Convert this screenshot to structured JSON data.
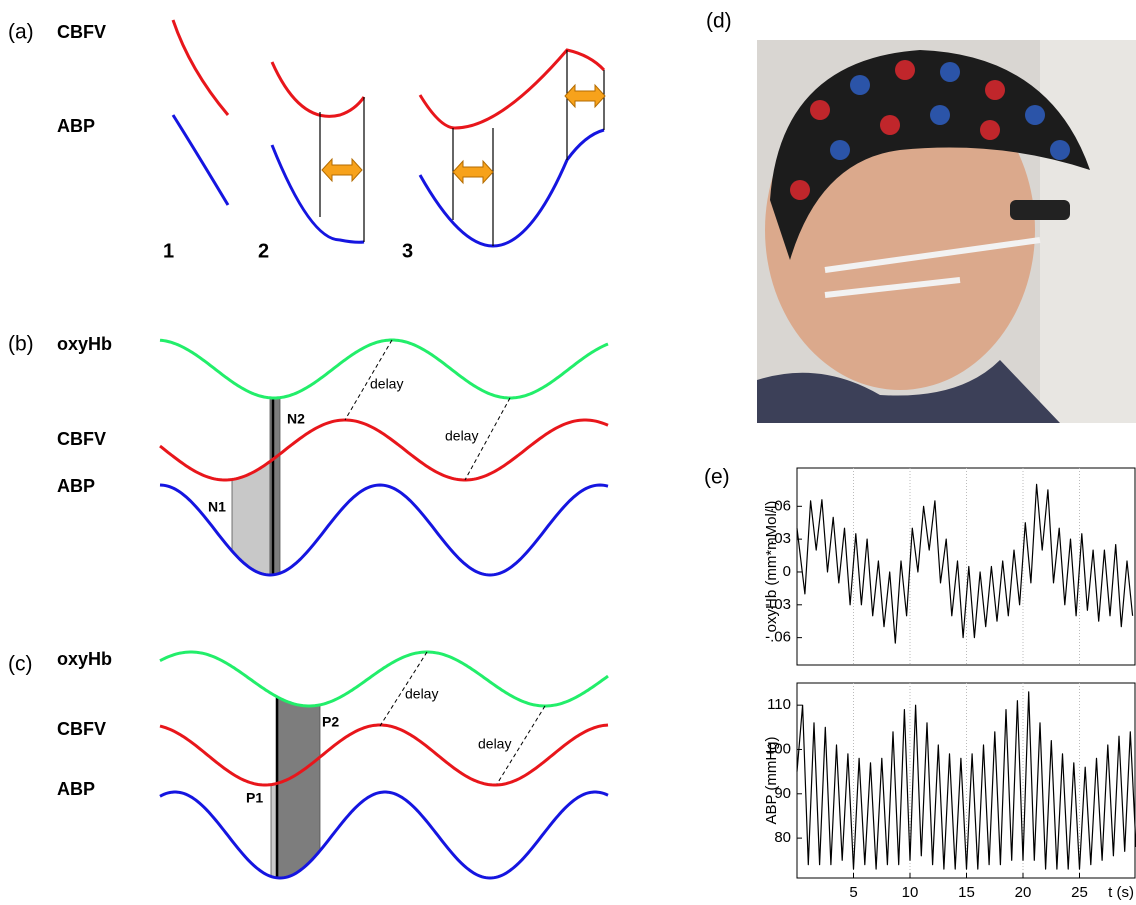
{
  "panels": {
    "a": {
      "label": "(a)",
      "signals": [
        "CBFV",
        "ABP"
      ],
      "stages": [
        "1",
        "2",
        "3"
      ]
    },
    "b": {
      "label": "(b)",
      "signals": [
        "oxyHb",
        "CBFV",
        "ABP"
      ],
      "delays": [
        "delay",
        "delay"
      ],
      "areas": [
        "N1",
        "N2"
      ]
    },
    "c": {
      "label": "(c)",
      "signals": [
        "oxyHb",
        "CBFV",
        "ABP"
      ],
      "delays": [
        "delay",
        "delay"
      ],
      "areas": [
        "P1",
        "P2"
      ]
    },
    "d": {
      "label": "(d)"
    },
    "e": {
      "label": "(e)"
    }
  },
  "chart_data": [
    {
      "type": "line",
      "ylabel": "oxyHb (mm*mMol/l)",
      "color": "#000000",
      "grid": "x",
      "x": [
        0,
        0.7,
        1.2,
        1.7,
        2.2,
        2.7,
        3.2,
        3.7,
        4.2,
        4.7,
        5.2,
        5.7,
        6.2,
        6.7,
        7.2,
        7.7,
        8.2,
        8.7,
        9.2,
        9.7,
        10.2,
        10.7,
        11.2,
        11.7,
        12.2,
        12.7,
        13.2,
        13.7,
        14.2,
        14.7,
        15.2,
        15.7,
        16.2,
        16.7,
        17.2,
        17.7,
        18.2,
        18.7,
        19.2,
        19.7,
        20.2,
        20.7,
        21.2,
        21.7,
        22.2,
        22.7,
        23.2,
        23.7,
        24.2,
        24.7,
        25.2,
        25.7,
        26.2,
        26.7,
        27.2,
        27.7,
        28.2,
        28.7,
        29.2,
        29.7
      ],
      "values": [
        0.04,
        -0.02,
        0.065,
        0.02,
        0.066,
        0.0,
        0.05,
        -0.01,
        0.04,
        -0.03,
        0.035,
        -0.03,
        0.03,
        -0.04,
        0.01,
        -0.05,
        0.0,
        -0.065,
        0.01,
        -0.04,
        0.04,
        0.0,
        0.06,
        0.02,
        0.065,
        -0.01,
        0.03,
        -0.04,
        0.01,
        -0.06,
        0.005,
        -0.06,
        0.0,
        -0.05,
        0.005,
        -0.045,
        0.01,
        -0.04,
        0.02,
        -0.03,
        0.045,
        -0.01,
        0.08,
        0.02,
        0.075,
        -0.01,
        0.04,
        -0.03,
        0.03,
        -0.04,
        0.035,
        -0.035,
        0.02,
        -0.045,
        0.02,
        -0.04,
        0.025,
        -0.05,
        0.01,
        -0.04
      ],
      "xlim": [
        0,
        30
      ],
      "ylim": [
        -0.085,
        0.095
      ],
      "yticks": [
        {
          "value": 0.06,
          "label": ".06"
        },
        {
          "value": 0.03,
          "label": ".03"
        },
        0,
        {
          "value": -0.03,
          "label": "-.03"
        },
        {
          "value": -0.06,
          "label": "-.06"
        }
      ]
    },
    {
      "type": "line",
      "ylabel": "ABP (mmHg)",
      "xlabel": "t (s)",
      "color": "#000000",
      "grid": "x",
      "x": [
        0,
        0.5,
        1,
        1.5,
        2,
        2.5,
        3,
        3.5,
        4,
        4.5,
        5,
        5.5,
        6,
        6.5,
        7,
        7.5,
        8,
        8.5,
        9,
        9.5,
        10,
        10.5,
        11,
        11.5,
        12,
        12.5,
        13,
        13.5,
        14,
        14.5,
        15,
        15.5,
        16,
        16.5,
        17,
        17.5,
        18,
        18.5,
        19,
        19.5,
        20,
        20.5,
        21,
        21.5,
        22,
        22.5,
        23,
        23.5,
        24,
        24.5,
        25,
        25.5,
        26,
        26.5,
        27,
        27.5,
        28,
        28.5,
        29,
        29.5,
        30
      ],
      "values": [
        95,
        110,
        74,
        106,
        74,
        105,
        74,
        101,
        75,
        99,
        73,
        98,
        74,
        97,
        73,
        98,
        74,
        104,
        74,
        109,
        75,
        110,
        76,
        106,
        74,
        101,
        73,
        99,
        73,
        98,
        73,
        99,
        73,
        101,
        74,
        104,
        74,
        109,
        75,
        111,
        75,
        113,
        75,
        106,
        73,
        102,
        73,
        99,
        73,
        97,
        73,
        96,
        74,
        98,
        75,
        101,
        76,
        103,
        77,
        104,
        78
      ],
      "xlim": [
        0,
        30
      ],
      "ylim": [
        71,
        115
      ],
      "xticks": [
        5,
        10,
        15,
        20,
        25
      ],
      "yticks": [
        80,
        90,
        100,
        110
      ]
    }
  ]
}
